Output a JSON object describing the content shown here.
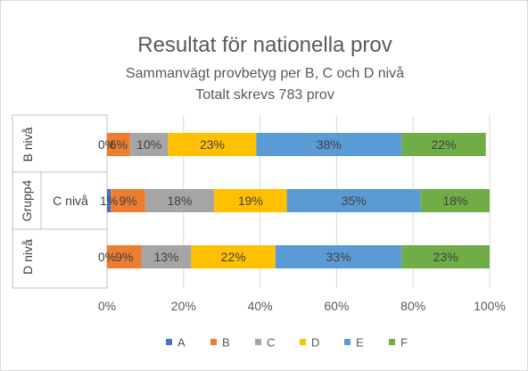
{
  "chart_data": {
    "type": "bar",
    "orientation": "horizontal",
    "stacked": "percent",
    "title": "Resultat för nationella prov",
    "subtitles": [
      "Sammanvägt provbetyg per B, C och D nivå",
      "Totalt skrevs 783 prov"
    ],
    "group_label": "Grupp4",
    "categories": [
      "B nivå",
      "C nivå",
      "D nivå"
    ],
    "category_label_vertical": [
      true,
      false,
      true
    ],
    "series": [
      {
        "name": "A",
        "color": "#4472C4",
        "values": [
          0,
          1,
          0
        ],
        "labels": [
          "0%",
          "1%",
          "0%"
        ]
      },
      {
        "name": "B",
        "color": "#ED7D31",
        "values": [
          6,
          9,
          9
        ],
        "labels": [
          "6%",
          "9%",
          "9%"
        ]
      },
      {
        "name": "C",
        "color": "#A5A5A5",
        "values": [
          10,
          18,
          13
        ],
        "labels": [
          "10%",
          "18%",
          "13%"
        ]
      },
      {
        "name": "D",
        "color": "#FFC000",
        "values": [
          23,
          19,
          22
        ],
        "labels": [
          "23%",
          "19%",
          "22%"
        ]
      },
      {
        "name": "E",
        "color": "#5B9BD5",
        "values": [
          38,
          35,
          33
        ],
        "labels": [
          "38%",
          "35%",
          "33%"
        ]
      },
      {
        "name": "F",
        "color": "#70AD47",
        "values": [
          22,
          18,
          23
        ],
        "labels": [
          "22%",
          "18%",
          "23%"
        ]
      }
    ],
    "xlim": [
      0,
      100
    ],
    "xticks": [
      {
        "value": 0,
        "label": "0%"
      },
      {
        "value": 20,
        "label": "20%"
      },
      {
        "value": 40,
        "label": "40%"
      },
      {
        "value": 60,
        "label": "60%"
      },
      {
        "value": 80,
        "label": "80%"
      },
      {
        "value": 100,
        "label": "100%"
      }
    ],
    "grid": true,
    "legend": "bottom"
  }
}
